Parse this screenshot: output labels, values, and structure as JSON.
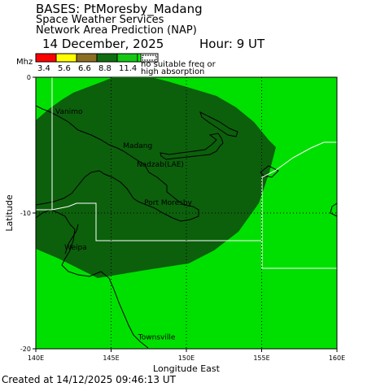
{
  "header": {
    "title": "BASES: PtMoresby_Madang",
    "subtitle": "Space Weather Services",
    "subtitle2": "Network Area Prediction (NAP)",
    "date": "14 December, 2025",
    "hour": "Hour:  9 UT"
  },
  "legend": {
    "unit": "Mhz",
    "swatches": [
      {
        "color": "#ff0000",
        "label": "3.4"
      },
      {
        "color": "#ffff00",
        "label": "5.6"
      },
      {
        "color": "#8c6f23",
        "label": "6.6"
      },
      {
        "color": "#0f6f0f",
        "label": "8.8"
      },
      {
        "color": "#14c814",
        "label": "11.4"
      },
      {
        "color": "#00ff00",
        "label": ""
      }
    ],
    "note_line1": "no suitable freq or",
    "note_line2": "high absorption"
  },
  "map": {
    "bg_color": "#00e000",
    "coverage_color": "#0c600c",
    "ylabel": "Latitude",
    "xlabel": "Longitude East",
    "x_ticks": [
      "140E",
      "145E",
      "150E",
      "155E",
      "160E"
    ],
    "y_ticks": [
      "0",
      "-10",
      "-20"
    ],
    "lon_range": [
      140,
      160
    ],
    "lat_range": [
      0,
      -20
    ],
    "places": [
      {
        "name": "Vanimo",
        "lon": 141.3,
        "lat": -2.7
      },
      {
        "name": "Madang",
        "lon": 145.8,
        "lat": -5.2
      },
      {
        "name": "Nadzab(LAE)",
        "lon": 146.7,
        "lat": -6.6
      },
      {
        "name": "Port Moresby",
        "lon": 147.2,
        "lat": -9.4
      },
      {
        "name": "Weipa",
        "lon": 141.9,
        "lat": -12.7
      },
      {
        "name": "Townsville",
        "lon": 146.8,
        "lat": -19.3
      }
    ]
  },
  "footer": "Created at 14/12/2025 09:46:13 UT"
}
